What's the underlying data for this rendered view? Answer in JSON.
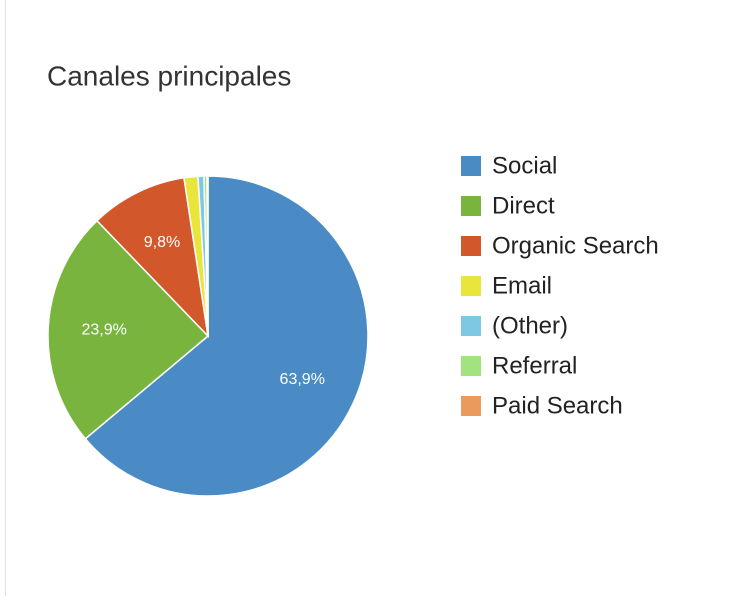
{
  "chart_data": {
    "type": "pie",
    "title": "Canales principales",
    "categories": [
      "Social",
      "Direct",
      "Organic Search",
      "Email",
      "(Other)",
      "Referral",
      "Paid Search"
    ],
    "values": [
      63.9,
      23.9,
      9.8,
      1.4,
      0.6,
      0.3,
      0.1
    ],
    "value_labels": [
      "63,9%",
      "23,9%",
      "9,8%",
      null,
      null,
      null,
      null
    ],
    "colors": [
      "#4a8bc6",
      "#78b43e",
      "#d2572a",
      "#e9e53a",
      "#7dc8e3",
      "#a3e37f",
      "#e99a5c"
    ],
    "legend": "right"
  }
}
